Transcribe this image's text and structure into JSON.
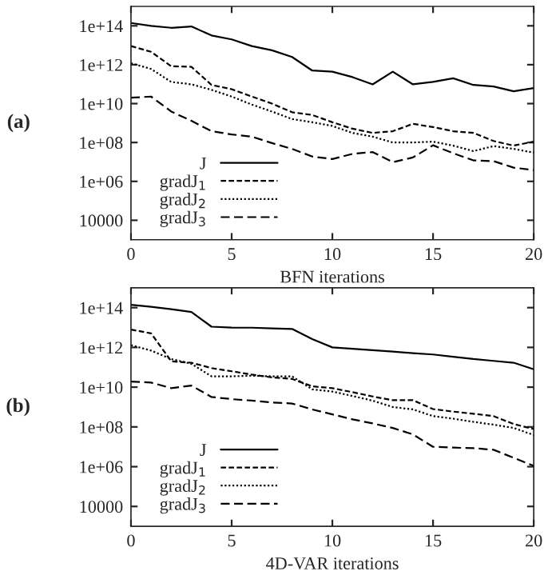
{
  "chart_data": [
    {
      "type": "line",
      "annotations": [
        "(a)"
      ],
      "xlabel": "BFN iterations",
      "x": [
        0,
        1,
        2,
        3,
        4,
        5,
        6,
        7,
        8,
        9,
        10,
        11,
        12,
        13,
        14,
        15,
        16,
        17,
        18,
        19,
        20
      ],
      "log": "y",
      "xlim": [
        0,
        20
      ],
      "xticks": [
        0,
        5,
        10,
        15,
        20
      ],
      "ylim": [
        1000,
        1000000000000000.0
      ],
      "yticks": [
        10000,
        {
          "value": 1000000.0,
          "label": "1e+06"
        },
        {
          "value": 100000000.0,
          "label": "1e+08"
        },
        {
          "value": 10000000000.0,
          "label": "1e+10"
        },
        {
          "value": 1000000000000.0,
          "label": "1e+12"
        },
        {
          "value": 100000000000000.0,
          "label": "1e+14"
        }
      ],
      "grid": false,
      "legend": "bottom left",
      "series": [
        {
          "name": "J",
          "color": "#000000",
          "line_style": "solid",
          "values": [
            140000000000000.0,
            100000000000000.0,
            79000000000000.0,
            93000000000000.0,
            32000000000000.0,
            20000000000000.0,
            9100000000000.0,
            5500000000000.0,
            2500000000000.0,
            500000000000.0,
            440000000000.0,
            230000000000.0,
            98000000000.0,
            440000000000.0,
            98000000000.0,
            130000000000.0,
            200000000000.0,
            91000000000.0,
            76000000000.0,
            43000000000.0,
            63000000000.0
          ]
        },
        {
          "name": "gradJ$_{1}$",
          "color": "#000000",
          "line_style": "dashed",
          "values": [
            9100000000000.0,
            4600000000000.0,
            830000000000.0,
            780000000000.0,
            91000000000.0,
            55000000000.0,
            23000000000.0,
            10000000000.0,
            3600000000.0,
            2600000000.0,
            1100000000.0,
            510000000.0,
            310000000.0,
            380000000.0,
            910000000.0,
            620000000.0,
            380000000.0,
            310000000.0,
            120000000.0,
            69000000.0,
            110000000.0
          ]
        },
        {
          "name": "gradJ$_{2}$",
          "color": "#000000",
          "line_style": "dotted",
          "values": [
            1200000000000.0,
            600000000000.0,
            130000000000.0,
            98000000000.0,
            51000000000.0,
            23000000000.0,
            8900000000.0,
            3900000000.0,
            1600000000.0,
            1100000000.0,
            710000000.0,
            310000000.0,
            200000000.0,
            100000000.0,
            100000000.0,
            110000000.0,
            69000000.0,
            36000000.0,
            65000000.0,
            47000000.0,
            30000000.0
          ]
        },
        {
          "name": "gradJ$_{3}$",
          "color": "#000000",
          "line_style": "dashed",
          "values": [
            20000000000.0,
            23000000000.0,
            3900000000.0,
            1300000000.0,
            380000000.0,
            260000000.0,
            200000000.0,
            93000000.0,
            47000000.0,
            19000000.0,
            14000000.0,
            26000000.0,
            32000000.0,
            9800000.0,
            17000000.0,
            72000000.0,
            28000000.0,
            12000000.0,
            11000000.0,
            5100000.0,
            3800000.0
          ]
        }
      ]
    },
    {
      "type": "line",
      "annotations": [
        "(b)"
      ],
      "xlabel": "4D-VAR iterations",
      "x": [
        0,
        1,
        2,
        3,
        4,
        5,
        6,
        7,
        8,
        9,
        10,
        11,
        12,
        13,
        14,
        15,
        16,
        17,
        18,
        19,
        20
      ],
      "log": "y",
      "xlim": [
        0,
        20
      ],
      "xticks": [
        0,
        5,
        10,
        15,
        20
      ],
      "ylim": [
        1000,
        1000000000000000.0
      ],
      "yticks": [
        10000,
        {
          "value": 1000000.0,
          "label": "1e+06"
        },
        {
          "value": 100000000.0,
          "label": "1e+08"
        },
        {
          "value": 10000000000.0,
          "label": "1e+10"
        },
        {
          "value": 1000000000000.0,
          "label": "1e+12"
        },
        {
          "value": 100000000000000.0,
          "label": "1e+14"
        }
      ],
      "grid": false,
      "legend": "bottom left",
      "series": [
        {
          "name": "J",
          "color": "#000000",
          "line_style": "solid",
          "values": [
            140000000000000.0,
            110000000000000.0,
            83000000000000.0,
            60000000000000.0,
            11000000000000.0,
            10000000000000.0,
            9800000000000.0,
            9100000000000.0,
            8500000000000.0,
            2600000000000.0,
            1000000000000.0,
            850000000000.0,
            720000000000.0,
            620000000000.0,
            510000000000.0,
            440000000000.0,
            340000000000.0,
            260000000000.0,
            210000000000.0,
            170000000000.0,
            79000000000.0
          ]
        },
        {
          "name": "gradJ$_{1}$",
          "color": "#000000",
          "line_style": "dashed",
          "values": [
            7900000000000.0,
            5100000000000.0,
            200000000000.0,
            170000000000.0,
            91000000000.0,
            63000000000.0,
            43000000000.0,
            31000000000.0,
            26000000000.0,
            11000000000.0,
            8900000000.0,
            5600000000.0,
            3400000000.0,
            2200000000.0,
            2200000000.0,
            790000000.0,
            590000000.0,
            460000000.0,
            350000000.0,
            140000000.0,
            78000000.0
          ]
        },
        {
          "name": "gradJ$_{2}$",
          "color": "#000000",
          "line_style": "dotted",
          "values": [
            1300000000000.0,
            690000000000.0,
            260000000000.0,
            150000000000.0,
            35000000000.0,
            35000000000.0,
            38000000000.0,
            35000000000.0,
            35000000000.0,
            7800000000.0,
            6000000000.0,
            3600000000.0,
            2100000000.0,
            1000000000.0,
            760000000.0,
            350000000.0,
            260000000.0,
            180000000.0,
            130000000.0,
            89000000.0,
            39000000.0
          ]
        },
        {
          "name": "gradJ$_{3}$",
          "color": "#000000",
          "line_style": "dashed",
          "values": [
            19000000000.0,
            17000000000.0,
            8900000000.0,
            12000000000.0,
            3200000000.0,
            2500000000.0,
            2100000000.0,
            1700000000.0,
            1500000000.0,
            760000000.0,
            430000000.0,
            240000000.0,
            150000000.0,
            89000000.0,
            42000000.0,
            10000000.0,
            9100000.0,
            8500000.0,
            7100000.0,
            2800000.0,
            1100000.0
          ]
        }
      ]
    }
  ]
}
